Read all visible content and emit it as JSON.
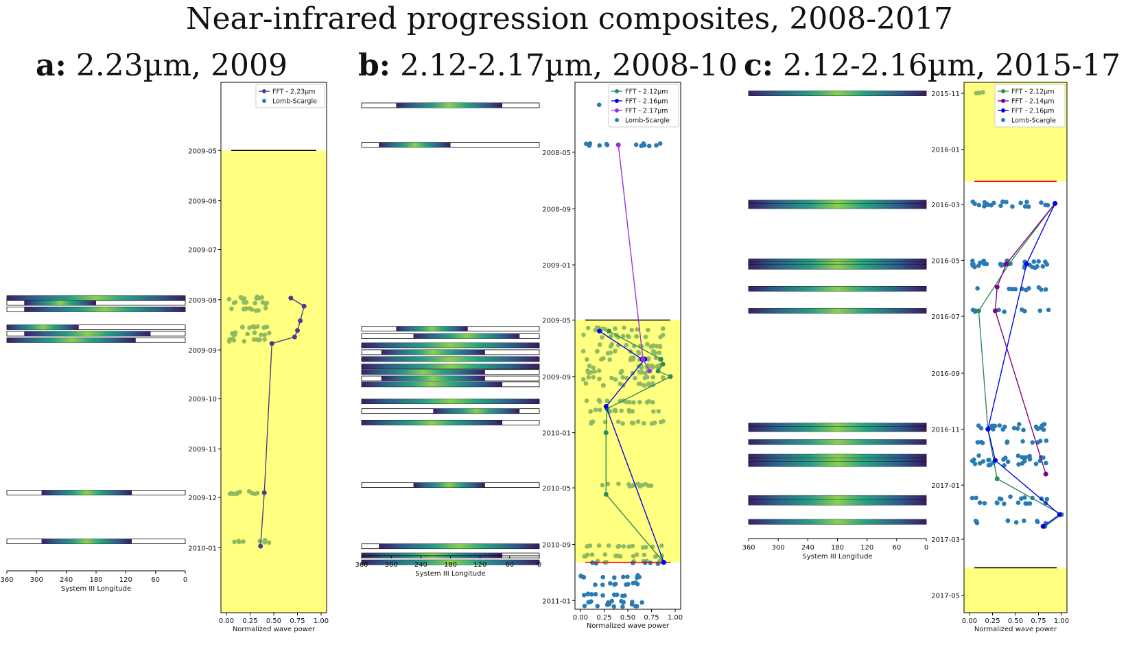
{
  "title": "Near-infrared progression composites, 2008-2017",
  "colors": {
    "highlight": "#ffff80",
    "green_dots": "#8fba61",
    "ls_blue": "#2a7bb4",
    "fft_223": "#4a3d8a",
    "fft_212": "#2e8b57",
    "fft_216": "#0000ee",
    "fft_217": "#9b30e0",
    "fft_214": "#800080",
    "red_line": "#ff0000",
    "black_line": "#000000"
  },
  "panels": [
    {
      "id": "a",
      "letter": "a:",
      "subtitle": "2.23µm, 2009",
      "long_axis": {
        "label": "System III Longitude",
        "ticks": [
          "360",
          "300",
          "240",
          "180",
          "120",
          "60",
          "0"
        ]
      },
      "power_axis": {
        "label": "Normalized wave power",
        "ticks": [
          "0.00",
          "0.25",
          "0.50",
          "0.75",
          "1.00"
        ]
      },
      "date_ticks": [
        "2009-05",
        "2009-06",
        "2009-07",
        "2009-08",
        "2009-09",
        "2009-10",
        "2009-11",
        "2009-12",
        "2010-01"
      ],
      "legend": [
        "FFT - 2.23µm",
        "Lomb-Scargle"
      ],
      "series": [
        {
          "name": "FFT - 2.23µm",
          "color_key": "fft_223",
          "x": [
            0.68,
            0.82,
            0.78,
            0.75,
            0.72,
            0.48,
            0.4,
            0.36
          ],
          "y": [
            "2009-07-31",
            "2009-08-05",
            "2009-08-14",
            "2009-08-20",
            "2009-08-24",
            "2009-08-28",
            "2009-11-28",
            "2009-12-31"
          ]
        }
      ],
      "strips": [
        {
          "date": "2009-07-31",
          "segments": [
            [
              360,
              0
            ]
          ]
        },
        {
          "date": "2009-08-03",
          "segments": [
            [
              325,
              180
            ]
          ]
        },
        {
          "date": "2009-08-07",
          "segments": [
            [
              325,
              0
            ]
          ]
        },
        {
          "date": "2009-08-18",
          "segments": [
            [
              360,
              215
            ]
          ]
        },
        {
          "date": "2009-08-22",
          "segments": [
            [
              325,
              70
            ]
          ]
        },
        {
          "date": "2009-08-26",
          "segments": [
            [
              360,
              100
            ]
          ]
        },
        {
          "date": "2009-11-28",
          "segments": [
            [
              290,
              108
            ]
          ]
        },
        {
          "date": "2009-12-28",
          "segments": [
            [
              290,
              108
            ]
          ]
        }
      ],
      "hl_start": "2009-05-01",
      "hl_end": "2010-02-10",
      "black_line": "2009-05-01",
      "red_line": "",
      "date_min": "2009-03-20",
      "date_max": "2010-02-10"
    },
    {
      "id": "b",
      "letter": "b:",
      "subtitle": "2.12-2.17µm, 2008-10",
      "long_axis": {
        "label": "System III Longitude",
        "ticks": [
          "360",
          "300",
          "240",
          "180",
          "120",
          "60",
          "0"
        ]
      },
      "power_axis": {
        "label": "Normalized wave power",
        "ticks": [
          "0.00",
          "0.25",
          "0.50",
          "0.75",
          "1.00"
        ]
      },
      "date_ticks": [
        "2008-05",
        "2008-09",
        "2009-01",
        "2009-05",
        "2009-09",
        "2010-01",
        "2010-05",
        "2010-09",
        "2011-01"
      ],
      "legend": [
        "FFT - 2.12µm",
        "FFT - 2.16µm",
        "FFT - 2.17µm",
        "Lomb-Scargle"
      ],
      "series": [
        {
          "name": "FFT - 2.12µm",
          "color_key": "fft_212",
          "x": [
            0.3,
            0.85,
            0.87,
            0.82,
            0.95,
            0.28,
            0.27,
            0.27,
            0.88
          ],
          "y": [
            "2009-05-25",
            "2009-07-25",
            "2009-08-05",
            "2009-08-20",
            "2009-09-01",
            "2009-11-10",
            "2010-01-01",
            "2010-05-15",
            "2010-10-10"
          ]
        },
        {
          "name": "FFT - 2.16µm",
          "color_key": "fft_216",
          "x": [
            0.2,
            0.65,
            0.68,
            0.27,
            0.88
          ],
          "y": [
            "2009-05-25",
            "2009-07-25",
            "2009-07-25",
            "2009-11-05",
            "2010-10-10"
          ]
        },
        {
          "name": "FFT - 2.17µm",
          "color_key": "fft_217",
          "x": [
            0.4,
            0.66,
            0.73
          ],
          "y": [
            "2008-04-15",
            "2009-07-25",
            "2009-08-20"
          ]
        }
      ],
      "strips": [
        {
          "date": "2008-01-20",
          "segments": [
            [
              290,
              75
            ]
          ]
        },
        {
          "date": "2008-04-15",
          "segments": [
            [
              325,
              180
            ]
          ]
        },
        {
          "date": "2009-05-20",
          "segments": [
            [
              290,
              145
            ]
          ]
        },
        {
          "date": "2009-06-05",
          "segments": [
            [
              255,
              40
            ]
          ]
        },
        {
          "date": "2009-06-25",
          "segments": [
            [
              360,
              0
            ]
          ]
        },
        {
          "date": "2009-07-10",
          "segments": [
            [
              320,
              110
            ]
          ]
        },
        {
          "date": "2009-07-25",
          "segments": [
            [
              360,
              0
            ]
          ]
        },
        {
          "date": "2009-08-10",
          "segments": [
            [
              360,
              0
            ]
          ]
        },
        {
          "date": "2009-08-22",
          "segments": [
            [
              360,
              110
            ]
          ]
        },
        {
          "date": "2009-09-05",
          "segments": [
            [
              320,
              110
            ]
          ]
        },
        {
          "date": "2009-09-18",
          "segments": [
            [
              360,
              75
            ]
          ]
        },
        {
          "date": "2009-10-25",
          "segments": [
            [
              360,
              0
            ]
          ]
        },
        {
          "date": "2009-11-15",
          "segments": [
            [
              215,
              40
            ]
          ]
        },
        {
          "date": "2009-12-10",
          "segments": [
            [
              360,
              75
            ]
          ]
        },
        {
          "date": "2010-04-25",
          "segments": [
            [
              255,
              110
            ]
          ]
        },
        {
          "date": "2010-09-05",
          "segments": [
            [
              325,
              0
            ]
          ]
        },
        {
          "date": "2010-09-25",
          "segments": [
            [
              360,
              75
            ]
          ]
        },
        {
          "date": "2010-10-10",
          "segments": [
            [
              360,
              0
            ]
          ]
        }
      ],
      "hl_start": "2009-05-01",
      "hl_end": "2010-10-10",
      "black_line": "2009-05-01",
      "red_line": "2010-10-10",
      "date_min": "2007-12-01",
      "date_max": "2011-01-20"
    },
    {
      "id": "c",
      "letter": "c:",
      "subtitle": "2.12-2.16µm, 2015-17",
      "long_axis": {
        "label": "System III Longitude",
        "ticks": [
          "360",
          "300",
          "240",
          "180",
          "120",
          "60",
          "0"
        ]
      },
      "power_axis": {
        "label": "Normalized wave power",
        "ticks": [
          "0.00",
          "0.25",
          "0.50",
          "0.75",
          "1.00"
        ]
      },
      "date_ticks": [
        "2015-11",
        "2016-01",
        "2016-03",
        "2016-05",
        "2016-07",
        "2016-09",
        "2016-11",
        "2017-01",
        "2017-03",
        "2017-05"
      ],
      "legend": [
        "FFT - 2.12µm",
        "FFT - 2.14µm",
        "FFT - 2.16µm",
        "Lomb-Scargle"
      ],
      "series": [
        {
          "name": "FFT - 2.12µm",
          "color_key": "fft_212",
          "x": [
            0.93,
            0.43,
            0.1,
            0.2,
            0.3,
            1.0,
            0.82
          ],
          "y": [
            "2016-02-29",
            "2016-05-05",
            "2016-06-25",
            "2016-11-01",
            "2016-12-25",
            "2017-02-02",
            "2017-02-15"
          ]
        },
        {
          "name": "FFT - 2.14µm",
          "color_key": "fft_214",
          "x": [
            0.93,
            0.4,
            0.3,
            0.28,
            0.83
          ],
          "y": [
            "2016-02-29",
            "2016-05-05",
            "2016-05-30",
            "2016-06-25",
            "2016-12-20"
          ]
        },
        {
          "name": "FFT - 2.16µm",
          "color_key": "fft_216",
          "x": [
            0.93,
            0.62,
            0.2,
            0.28,
            0.98,
            0.8
          ],
          "y": [
            "2016-02-29",
            "2016-05-05",
            "2016-11-01",
            "2016-12-05",
            "2017-02-02",
            "2017-02-15"
          ]
        }
      ],
      "strips": [
        {
          "date": "2015-11-01",
          "segments": [
            [
              360,
              0
            ]
          ]
        },
        {
          "date": "2016-02-28",
          "segments": [
            [
              360,
              0
            ]
          ]
        },
        {
          "date": "2016-03-03",
          "segments": [
            [
              360,
              0
            ]
          ]
        },
        {
          "date": "2016-05-02",
          "segments": [
            [
              360,
              0
            ]
          ]
        },
        {
          "date": "2016-05-05",
          "segments": [
            [
              360,
              0
            ]
          ]
        },
        {
          "date": "2016-05-08",
          "segments": [
            [
              360,
              0
            ]
          ]
        },
        {
          "date": "2016-06-01",
          "segments": [
            [
              360,
              0
            ]
          ]
        },
        {
          "date": "2016-06-25",
          "segments": [
            [
              360,
              0
            ]
          ]
        },
        {
          "date": "2016-10-28",
          "segments": [
            [
              360,
              0
            ]
          ]
        },
        {
          "date": "2016-11-01",
          "segments": [
            [
              360,
              0
            ]
          ]
        },
        {
          "date": "2016-11-15",
          "segments": [
            [
              360,
              0
            ]
          ]
        },
        {
          "date": "2016-12-01",
          "segments": [
            [
              360,
              0
            ]
          ]
        },
        {
          "date": "2016-12-05",
          "segments": [
            [
              360,
              0
            ]
          ]
        },
        {
          "date": "2016-12-09",
          "segments": [
            [
              360,
              0
            ]
          ]
        },
        {
          "date": "2017-01-15",
          "segments": [
            [
              360,
              0
            ]
          ]
        },
        {
          "date": "2017-01-20",
          "segments": [
            [
              360,
              0
            ]
          ]
        },
        {
          "date": "2017-02-10",
          "segments": [
            [
              360,
              0
            ]
          ]
        }
      ],
      "hl_start": "2015-10-20",
      "hl_end": "2016-02-05",
      "hl2_start": "2017-04-01",
      "hl2_end": "2017-05-20",
      "black_line": "2017-04-01",
      "red_line": "2016-02-05",
      "date_min": "2015-10-20",
      "date_max": "2017-05-20"
    }
  ]
}
